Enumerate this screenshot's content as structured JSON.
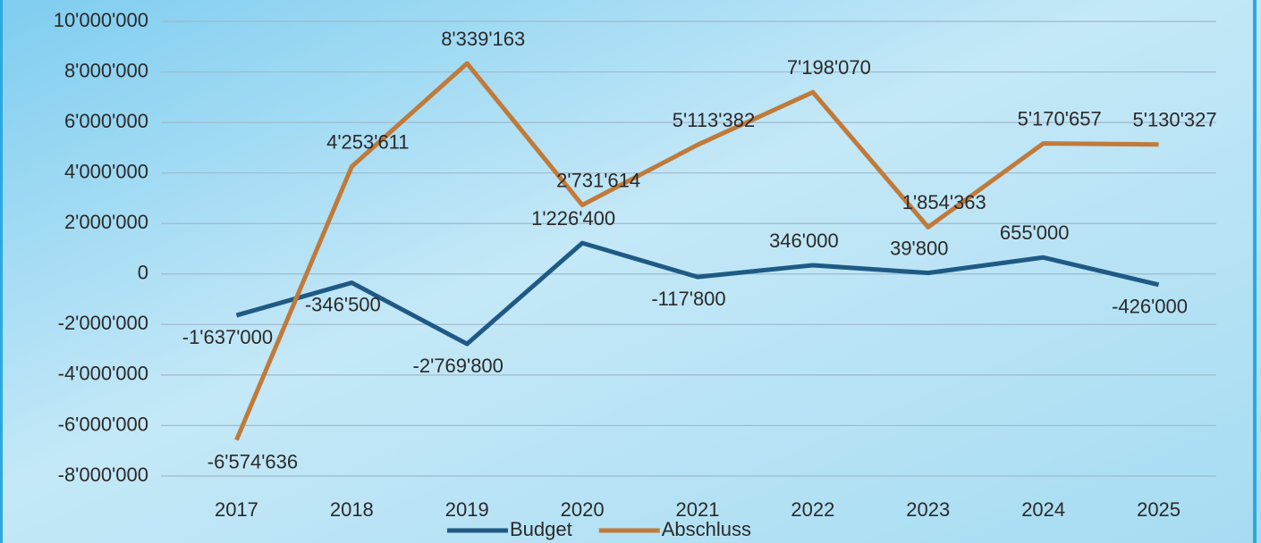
{
  "chart_data": {
    "type": "line",
    "categories": [
      "2017",
      "2018",
      "2019",
      "2020",
      "2021",
      "2022",
      "2023",
      "2024",
      "2025"
    ],
    "series": [
      {
        "name": "Budget",
        "color": "#1f5a85",
        "values": [
          -1637000,
          -346500,
          -2769800,
          1226400,
          -117800,
          346000,
          39800,
          655000,
          -426000
        ],
        "value_labels": [
          "-1'637'000",
          "-346'500",
          "-2'769'800",
          "1'226'400",
          "-117'800",
          "346'000",
          "39'800",
          "655'000",
          "-426'000"
        ]
      },
      {
        "name": "Abschluss",
        "color": "#c07a3a",
        "values": [
          -6574636,
          4253611,
          8339163,
          2731614,
          5113382,
          7198070,
          1854363,
          5170657,
          5130327
        ],
        "value_labels": [
          "-6'574'636",
          "4'253'611",
          "8'339'163",
          "2'731'614",
          "5'113'382",
          "7'198'070",
          "1'854'363",
          "5'170'657",
          "5'130'327"
        ]
      }
    ],
    "ylim": [
      -8000000,
      10000000
    ],
    "yticks": [
      {
        "value": -8000000,
        "label": "-8'000'000"
      },
      {
        "value": -6000000,
        "label": "-6'000'000"
      },
      {
        "value": -4000000,
        "label": "-4'000'000"
      },
      {
        "value": -2000000,
        "label": "-2'000'000"
      },
      0,
      {
        "value": 2000000,
        "label": "2'000'000"
      },
      {
        "value": 4000000,
        "label": "4'000'000"
      },
      {
        "value": 6000000,
        "label": "6'000'000"
      },
      {
        "value": 8000000,
        "label": "8'000'000"
      },
      {
        "value": 10000000,
        "label": "10'000'000"
      }
    ],
    "grid": true,
    "legend": "bottom"
  }
}
